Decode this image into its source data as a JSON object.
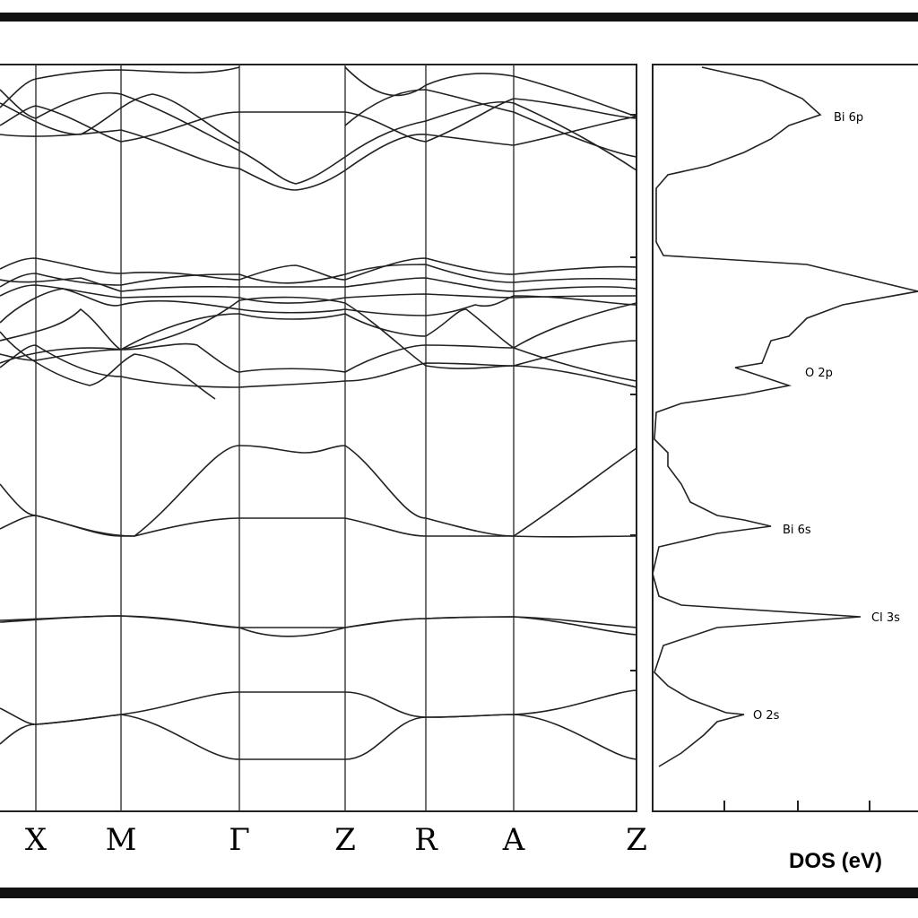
{
  "chart_data": {
    "type": "band-structure",
    "categories": [
      "X",
      "M",
      "Γ",
      "Z",
      "R",
      "A",
      "Z"
    ],
    "dos_labels": [
      "Bi 6p",
      "O 2p",
      "Bi 6s",
      "Cl 3s",
      "O 2s"
    ],
    "dos_xlabel": "DOS (eV)"
  }
}
